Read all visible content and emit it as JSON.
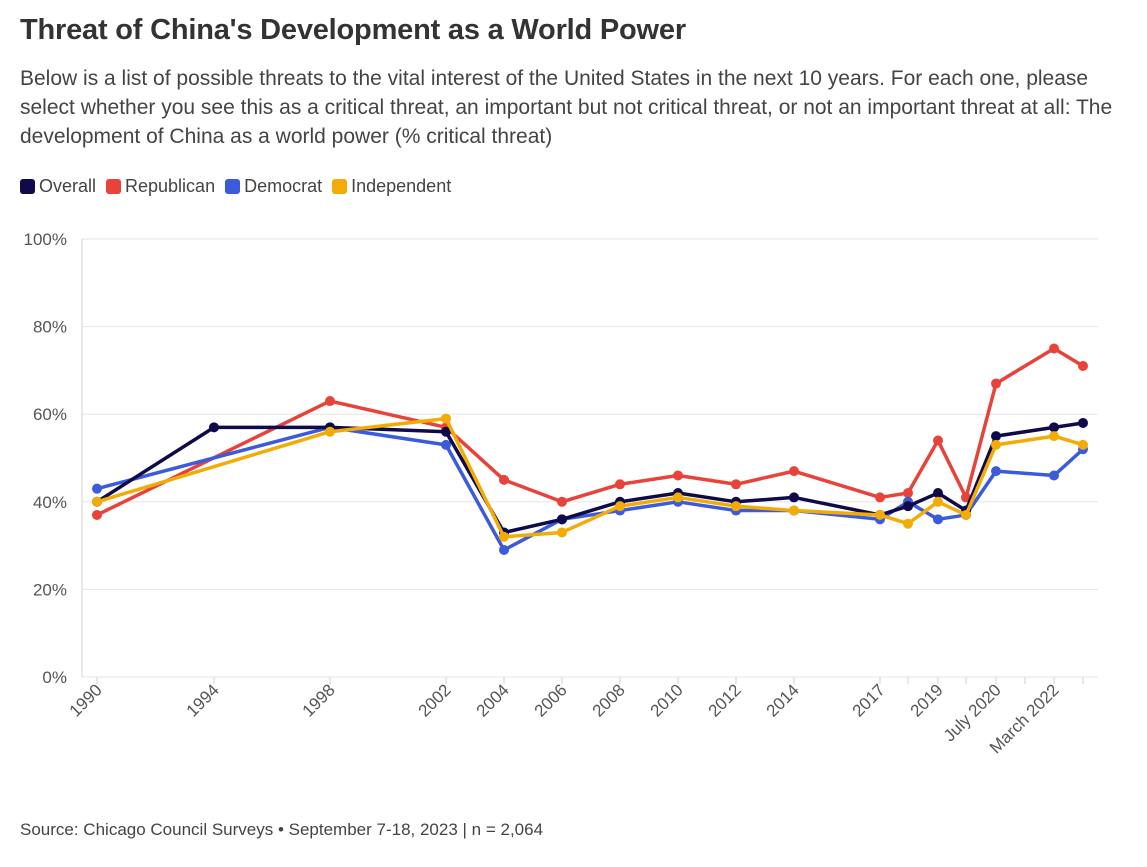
{
  "header": {
    "title": "Threat of China's Development as a World Power",
    "subtitle": "Below is a list of possible threats to the vital interest of the United States in the next 10 years. For each one, please select whether you see this as a critical threat, an important but not critical threat, or not an important threat at all: The development of China as a world power (% critical threat)"
  },
  "legend": [
    {
      "label": "Overall",
      "color": "#0f0a4a"
    },
    {
      "label": "Republican",
      "color": "#e8433a"
    },
    {
      "label": "Democrat",
      "color": "#3b5bdb"
    },
    {
      "label": "Independent",
      "color": "#f2ac05"
    }
  ],
  "footer": {
    "source": "Source: Chicago Council Surveys • September 7-18, 2023 | n = 2,064"
  },
  "chart_data": {
    "type": "line",
    "title": "Threat of China's Development as a World Power",
    "ylabel": "% critical threat",
    "ylim": [
      0,
      100
    ],
    "yticks": [
      "0%",
      "20%",
      "40%",
      "60%",
      "80%",
      "100%"
    ],
    "x": [
      1990,
      1994,
      1998,
      2002,
      2004,
      2006,
      2008,
      2010,
      2012,
      2014,
      2017,
      2018,
      2019,
      2020,
      2020.6,
      2021.5,
      2022.2,
      2023
    ],
    "xticks": [
      {
        "x": 1990,
        "label": "1990"
      },
      {
        "x": 1994,
        "label": "1994"
      },
      {
        "x": 1998,
        "label": "1998"
      },
      {
        "x": 2002,
        "label": "2002"
      },
      {
        "x": 2004,
        "label": "2004"
      },
      {
        "x": 2006,
        "label": "2006"
      },
      {
        "x": 2008,
        "label": "2008"
      },
      {
        "x": 2010,
        "label": "2010"
      },
      {
        "x": 2012,
        "label": "2012"
      },
      {
        "x": 2014,
        "label": "2014"
      },
      {
        "x": 2017,
        "label": "2017"
      },
      {
        "x": 2019,
        "label": "2019"
      },
      {
        "x": 2020.6,
        "label": "July 2020"
      },
      {
        "x": 2022.2,
        "label": "March 2022"
      }
    ],
    "series": [
      {
        "name": "Republican",
        "color": "#e8433a",
        "values": [
          37,
          null,
          63,
          57,
          45,
          40,
          44,
          46,
          44,
          47,
          41,
          42,
          54,
          41,
          67,
          null,
          75,
          71
        ]
      },
      {
        "name": "Democrat",
        "color": "#3b5bdb",
        "values": [
          43,
          null,
          57,
          53,
          29,
          36,
          38,
          40,
          38,
          38,
          36,
          40,
          36,
          37,
          47,
          null,
          46,
          52
        ]
      },
      {
        "name": "Overall",
        "color": "#0f0a4a",
        "values": [
          40,
          57,
          57,
          56,
          33,
          36,
          40,
          42,
          40,
          41,
          37,
          39,
          42,
          38,
          55,
          null,
          57,
          58
        ]
      },
      {
        "name": "Independent",
        "color": "#f2ac05",
        "values": [
          40,
          null,
          56,
          59,
          32,
          33,
          39,
          41,
          39,
          38,
          37,
          35,
          40,
          37,
          53,
          null,
          55,
          53
        ]
      }
    ]
  }
}
